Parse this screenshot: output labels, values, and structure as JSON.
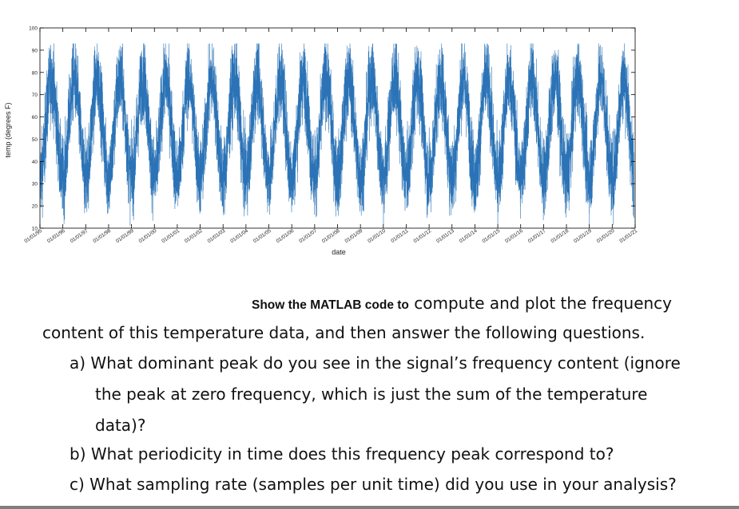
{
  "chart_data": {
    "type": "line",
    "xlabel": "date",
    "ylabel": "temp (degrees F)",
    "ylim": [
      10,
      100
    ],
    "yticks": [
      10,
      20,
      30,
      40,
      50,
      60,
      70,
      80,
      90,
      100
    ],
    "x_range": [
      "01/01/95",
      "01/01/21"
    ],
    "xticks": [
      "01/01/95",
      "01/01/96",
      "01/01/97",
      "01/01/98",
      "01/01/99",
      "01/01/00",
      "01/01/01",
      "01/01/02",
      "01/01/03",
      "01/01/04",
      "01/01/05",
      "01/01/06",
      "01/01/07",
      "01/01/08",
      "01/01/09",
      "01/01/10",
      "01/01/11",
      "01/01/12",
      "01/01/13",
      "01/01/14",
      "01/01/15",
      "01/01/16",
      "01/01/17",
      "01/01/18",
      "01/01/19",
      "01/01/20",
      "01/01/21"
    ],
    "series": [
      {
        "color": "#2b73b6",
        "mean": 55,
        "annual_amplitude": 22,
        "daily_noise": 9,
        "period_years": 1,
        "minimum_near": "January",
        "maximum_near": "July"
      }
    ],
    "grid": false,
    "legend": "none"
  },
  "question": {
    "intro_bold": "Show the MATLAB code to",
    "intro_rest": " compute and plot the frequency",
    "intro_line2": "content of this temperature data, and then answer the following questions.",
    "a_line1": "a) What dominant peak do you see in the signal’s frequency content (ignore",
    "a_line2": "the peak at zero frequency, which is just the sum of the temperature",
    "a_line3": "data)?",
    "b_line1": "b) What periodicity in time does this frequency peak correspond to?",
    "c_line1": "c) What sampling rate (samples per unit time) did you use in your analysis?"
  }
}
